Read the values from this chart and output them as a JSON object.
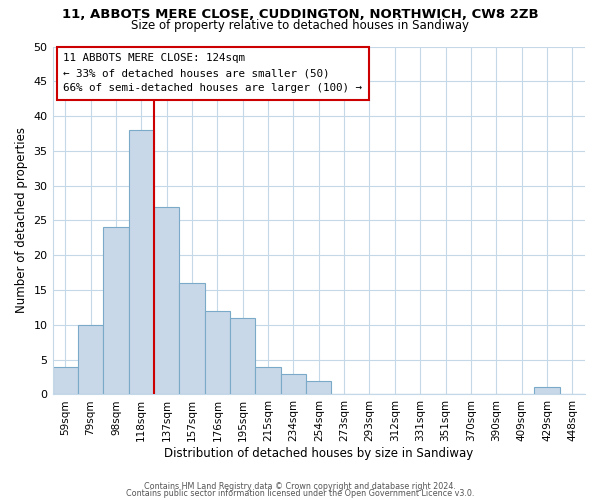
{
  "title_line1": "11, ABBOTS MERE CLOSE, CUDDINGTON, NORTHWICH, CW8 2ZB",
  "title_line2": "Size of property relative to detached houses in Sandiway",
  "xlabel": "Distribution of detached houses by size in Sandiway",
  "ylabel": "Number of detached properties",
  "bar_labels": [
    "59sqm",
    "79sqm",
    "98sqm",
    "118sqm",
    "137sqm",
    "157sqm",
    "176sqm",
    "195sqm",
    "215sqm",
    "234sqm",
    "254sqm",
    "273sqm",
    "293sqm",
    "312sqm",
    "331sqm",
    "351sqm",
    "370sqm",
    "390sqm",
    "409sqm",
    "429sqm",
    "448sqm"
  ],
  "bar_values": [
    4,
    10,
    24,
    38,
    27,
    16,
    12,
    11,
    4,
    3,
    2,
    0,
    0,
    0,
    0,
    0,
    0,
    0,
    0,
    1,
    0
  ],
  "bar_color": "#c8d8e8",
  "bar_edge_color": "#7aaac8",
  "ylim": [
    0,
    50
  ],
  "yticks": [
    0,
    5,
    10,
    15,
    20,
    25,
    30,
    35,
    40,
    45,
    50
  ],
  "property_bin_index": 3,
  "annotation_title": "11 ABBOTS MERE CLOSE: 124sqm",
  "annotation_line1": "← 33% of detached houses are smaller (50)",
  "annotation_line2": "66% of semi-detached houses are larger (100) →",
  "annotation_box_color": "#ffffff",
  "annotation_box_edge": "#cc0000",
  "vline_color": "#cc0000",
  "footer_line1": "Contains HM Land Registry data © Crown copyright and database right 2024.",
  "footer_line2": "Contains public sector information licensed under the Open Government Licence v3.0.",
  "background_color": "#ffffff",
  "grid_color": "#c5d8e8"
}
